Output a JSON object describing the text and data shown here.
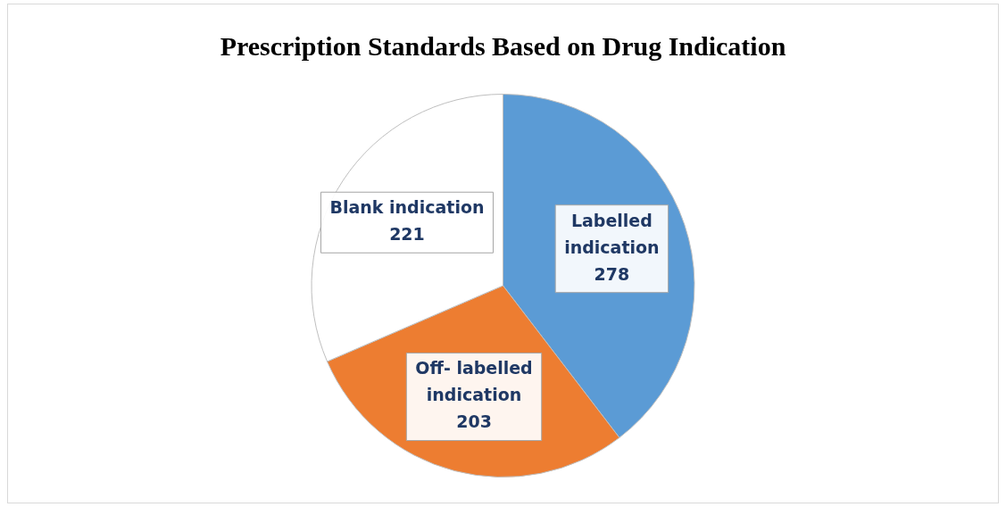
{
  "chart_data": {
    "type": "pie",
    "title": "Prescription Standards Based on Drug Indication",
    "categories": [
      "Labelled indication",
      "Off- labelled indication",
      "Blank indication"
    ],
    "values": [
      278,
      203,
      221
    ],
    "colors": [
      "#5b9bd5",
      "#ed7d31",
      "#ffffff"
    ],
    "data_labels": true,
    "legend": false
  }
}
